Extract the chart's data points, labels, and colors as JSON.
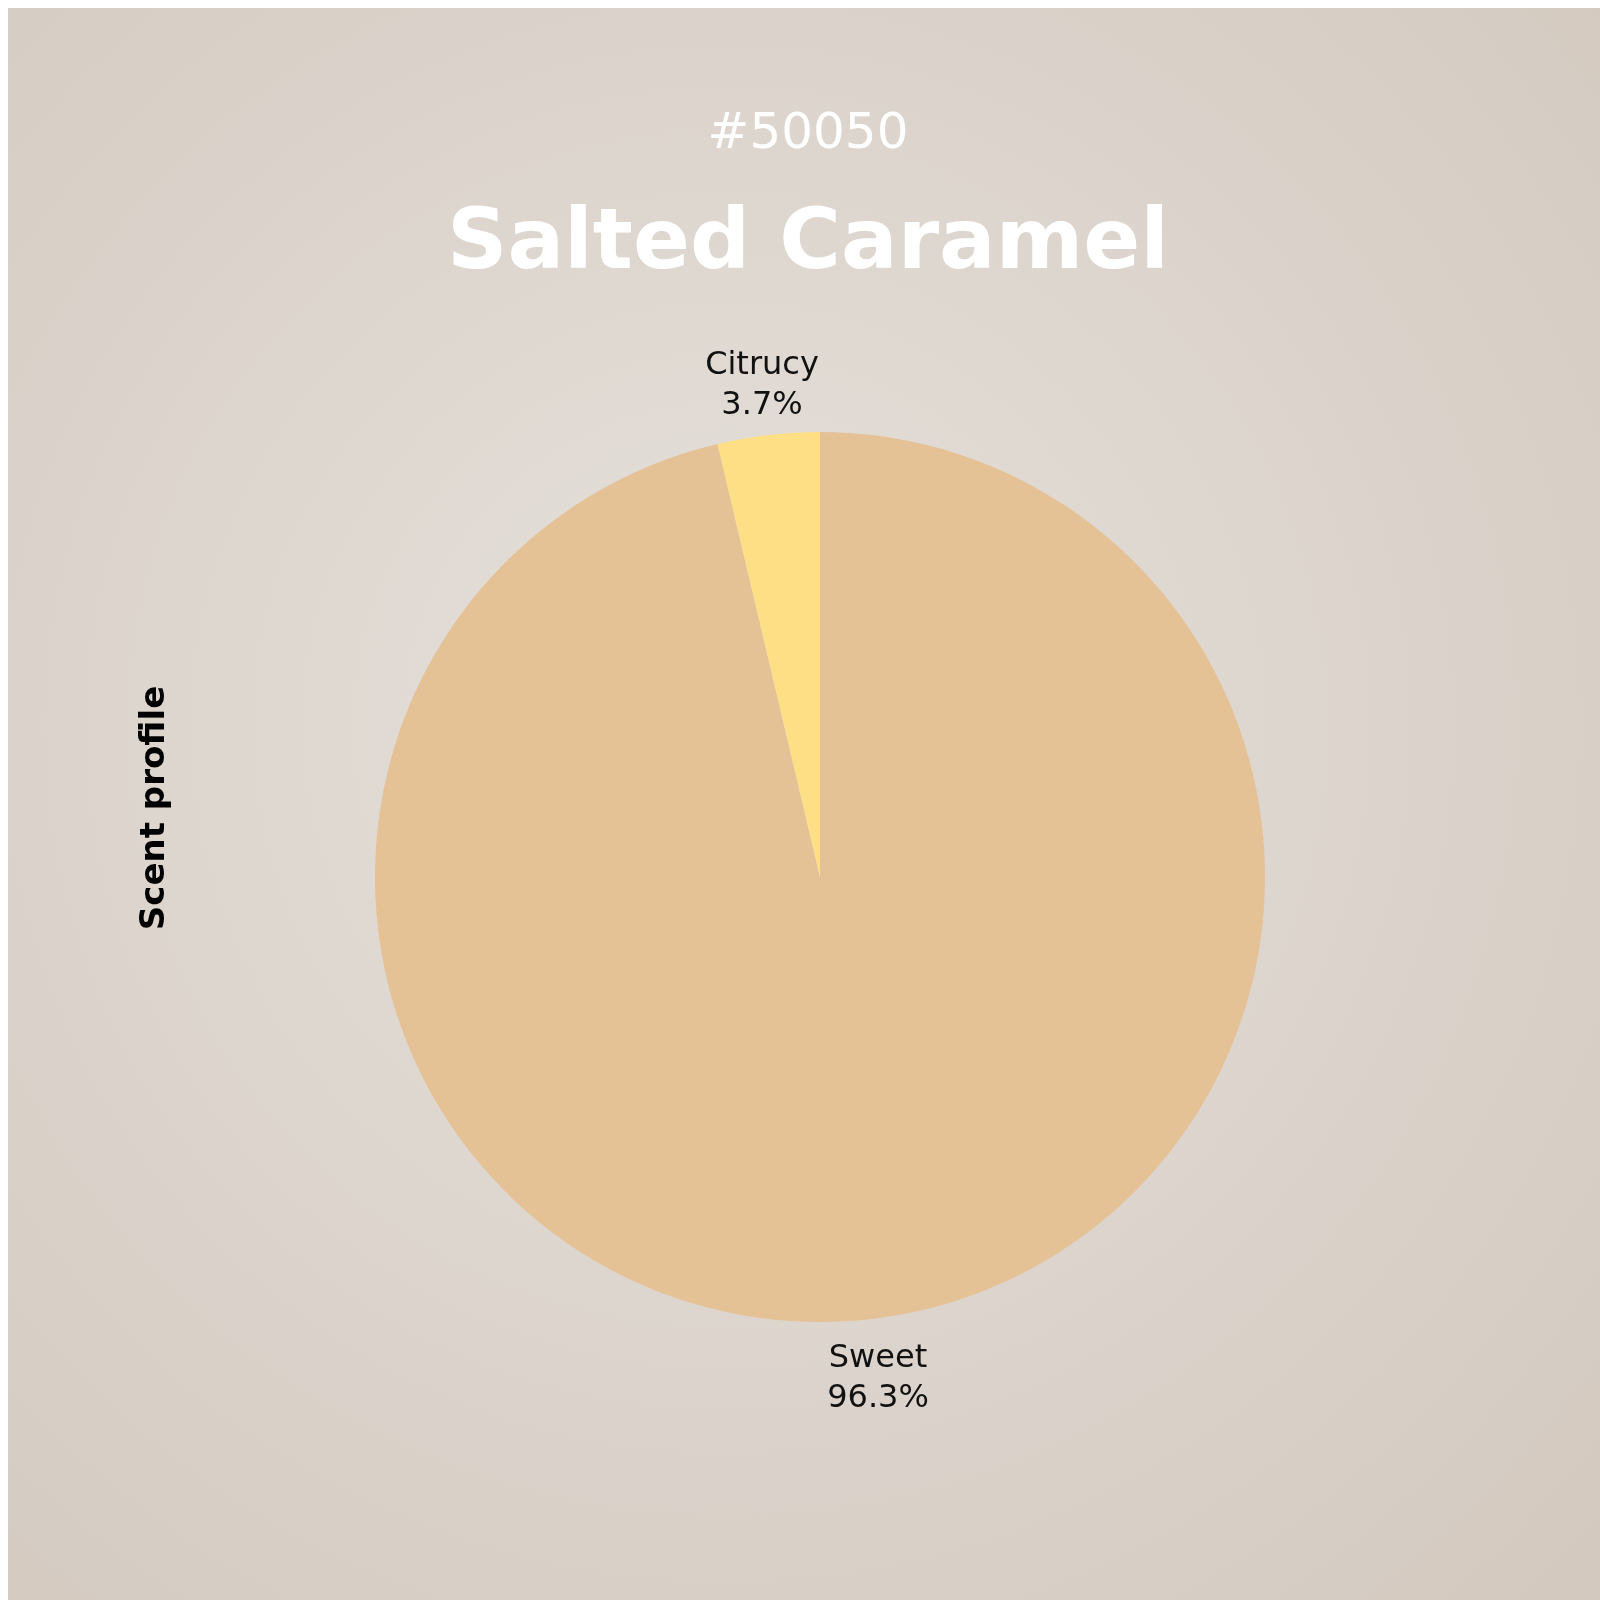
{
  "chart_data": {
    "type": "pie",
    "title": "Salted Caramel",
    "subtitle": "#50050",
    "ylabel": "Scent profile",
    "categories": [
      "Sweet",
      "Citrucy"
    ],
    "values": [
      96.3,
      3.7
    ],
    "colors": [
      "#e5c196",
      "#ffdf85"
    ],
    "value_labels": [
      "96.3%",
      "3.7%"
    ]
  }
}
